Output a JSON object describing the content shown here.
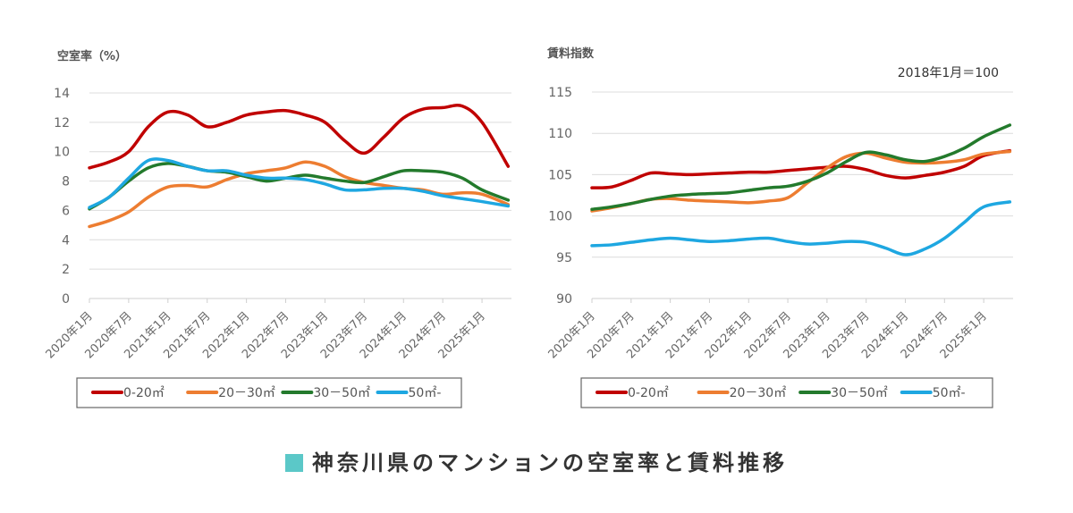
{
  "title": "神奈川県のマンションの空室率と賃料推移",
  "colors": {
    "title_square": "#5bc8c8"
  },
  "chart_data": [
    {
      "type": "line",
      "title": "",
      "ylabel": "空室率（%）",
      "note": "",
      "ylim": [
        0,
        14
      ],
      "yticks": [
        "0",
        "2",
        "4",
        "6",
        "8",
        "10",
        "12",
        "14"
      ],
      "xtick_labels": [
        "2020年1月",
        "2020年7月",
        "2021年1月",
        "2021年7月",
        "2022年1月",
        "2022年7月",
        "2023年1月",
        "2023年7月",
        "2024年1月",
        "2024年7月",
        "2025年1月"
      ],
      "x": [
        "2020-01",
        "2020-04",
        "2020-07",
        "2020-10",
        "2021-01",
        "2021-04",
        "2021-07",
        "2021-10",
        "2022-01",
        "2022-04",
        "2022-07",
        "2022-10",
        "2023-01",
        "2023-04",
        "2023-07",
        "2023-10",
        "2024-01",
        "2024-04",
        "2024-07",
        "2024-10",
        "2025-01",
        "2025-05"
      ],
      "grid": true,
      "legend_position": "bottom",
      "series": [
        {
          "name": "0-20㎡",
          "color": "#c00000",
          "values": [
            8.9,
            9.3,
            10.0,
            11.7,
            12.7,
            12.5,
            11.7,
            12.0,
            12.5,
            12.7,
            12.8,
            12.5,
            12.0,
            10.75,
            9.9,
            11.0,
            12.3,
            12.9,
            13.0,
            13.1,
            12.0,
            9.0
          ]
        },
        {
          "name": "20－30㎡",
          "color": "#ed7d31",
          "values": [
            4.9,
            5.3,
            5.9,
            6.9,
            7.6,
            7.7,
            7.6,
            8.1,
            8.5,
            8.7,
            8.9,
            9.3,
            9.0,
            8.3,
            7.9,
            7.7,
            7.5,
            7.4,
            7.1,
            7.2,
            7.1,
            6.4
          ]
        },
        {
          "name": "30－50㎡",
          "color": "#237a2c",
          "values": [
            6.1,
            6.9,
            8.0,
            8.9,
            9.2,
            9.0,
            8.7,
            8.6,
            8.3,
            8.0,
            8.2,
            8.4,
            8.2,
            8.0,
            7.9,
            8.3,
            8.7,
            8.7,
            8.6,
            8.2,
            7.4,
            6.7
          ]
        },
        {
          "name": "50㎡-",
          "color": "#1ea7e1",
          "values": [
            6.2,
            6.9,
            8.2,
            9.4,
            9.4,
            9.0,
            8.7,
            8.7,
            8.4,
            8.2,
            8.2,
            8.1,
            7.8,
            7.4,
            7.4,
            7.5,
            7.5,
            7.3,
            7.0,
            6.8,
            6.6,
            6.3
          ]
        }
      ]
    },
    {
      "type": "line",
      "title": "",
      "ylabel": "賃料指数",
      "note": "2018年1月＝100",
      "ylim": [
        90,
        115
      ],
      "yticks": [
        "90",
        "95",
        "100",
        "105",
        "110",
        "115"
      ],
      "xtick_labels": [
        "2020年1月",
        "2020年7月",
        "2021年1月",
        "2021年7月",
        "2022年1月",
        "2022年7月",
        "2023年1月",
        "2023年7月",
        "2024年1月",
        "2024年7月",
        "2025年1月"
      ],
      "x": [
        "2020-01",
        "2020-04",
        "2020-07",
        "2020-10",
        "2021-01",
        "2021-04",
        "2021-07",
        "2021-10",
        "2022-01",
        "2022-04",
        "2022-07",
        "2022-10",
        "2023-01",
        "2023-04",
        "2023-07",
        "2023-10",
        "2024-01",
        "2024-04",
        "2024-07",
        "2024-10",
        "2025-01",
        "2025-05"
      ],
      "grid": true,
      "legend_position": "bottom",
      "series": [
        {
          "name": "0-20㎡",
          "color": "#c00000",
          "values": [
            103.4,
            103.5,
            104.3,
            105.2,
            105.1,
            105.0,
            105.1,
            105.2,
            105.3,
            105.3,
            105.5,
            105.7,
            105.9,
            106.0,
            105.6,
            104.9,
            104.6,
            104.9,
            105.3,
            106.0,
            107.3,
            107.9
          ]
        },
        {
          "name": "20－30㎡",
          "color": "#ed7d31",
          "values": [
            100.6,
            101.0,
            101.5,
            102.0,
            102.1,
            101.9,
            101.8,
            101.7,
            101.6,
            101.8,
            102.2,
            104.0,
            105.8,
            107.2,
            107.6,
            107.0,
            106.5,
            106.4,
            106.5,
            106.8,
            107.5,
            107.8
          ]
        },
        {
          "name": "30－50㎡",
          "color": "#237a2c",
          "values": [
            100.8,
            101.1,
            101.5,
            102.0,
            102.4,
            102.6,
            102.7,
            102.8,
            103.1,
            103.4,
            103.6,
            104.2,
            105.2,
            106.6,
            107.7,
            107.4,
            106.8,
            106.6,
            107.2,
            108.2,
            109.6,
            111.0
          ]
        },
        {
          "name": "50㎡-",
          "color": "#1ea7e1",
          "values": [
            96.4,
            96.5,
            96.8,
            97.1,
            97.3,
            97.1,
            96.9,
            97.0,
            97.2,
            97.3,
            96.9,
            96.6,
            96.7,
            96.9,
            96.8,
            96.1,
            95.3,
            96.0,
            97.3,
            99.2,
            101.1,
            101.7
          ]
        }
      ]
    }
  ]
}
